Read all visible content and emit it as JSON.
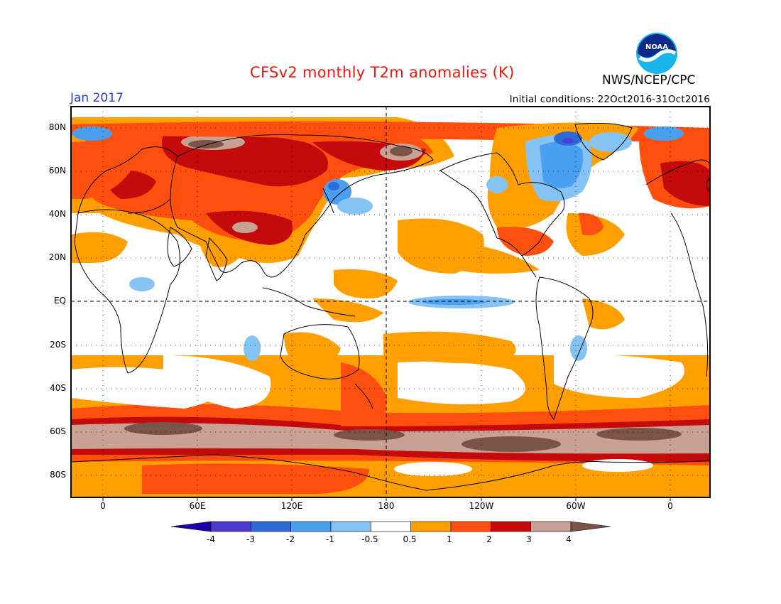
{
  "header": {
    "title": "CFSv2 monthly T2m anomalies (K)",
    "organization": "NWS/NCEP/CPC",
    "valid_month": "Jan 2017",
    "initial_conditions": "Initial conditions: 22Oct2016-31Oct2016",
    "logo_text": "NOAA"
  },
  "map": {
    "lat_labels": [
      "80N",
      "60N",
      "40N",
      "20N",
      "EQ",
      "20S",
      "40S",
      "60S",
      "80S"
    ],
    "lon_labels": [
      "0",
      "60E",
      "120E",
      "180",
      "120W",
      "60W",
      "0"
    ]
  },
  "colorbar": {
    "labels": [
      "-4",
      "-3",
      "-2",
      "-1",
      "-0.5",
      "0.5",
      "1",
      "2",
      "3",
      "4"
    ],
    "colors": [
      "#1e00a8",
      "#4b3cd0",
      "#2f6bd7",
      "#4a9ff0",
      "#86c3f5",
      "#ffffff",
      "#ffa000",
      "#ff4f0e",
      "#c40a0a",
      "#c8a094",
      "#7a5446"
    ]
  }
}
